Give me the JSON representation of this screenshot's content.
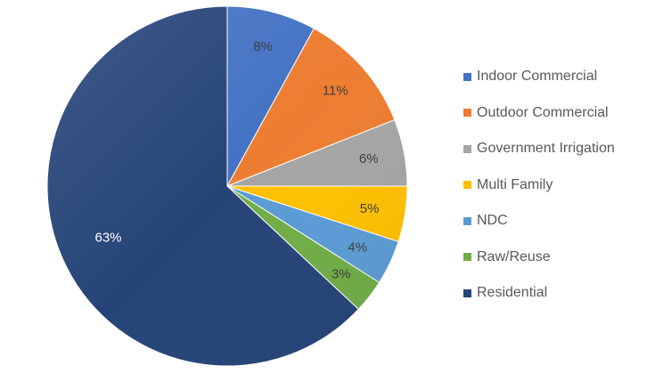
{
  "chart_data": {
    "type": "pie",
    "title": "",
    "start_angle_deg": 0,
    "direction": "clockwise",
    "legend_position": "right",
    "slices": [
      {
        "name": "Indoor Commercial",
        "value": 8,
        "label": "8%",
        "color": "#4472C4",
        "label_color": "#404040"
      },
      {
        "name": "Outdoor Commercial",
        "value": 11,
        "label": "11%",
        "color": "#ED7D31",
        "label_color": "#404040"
      },
      {
        "name": "Government Irrigation",
        "value": 6,
        "label": "6%",
        "color": "#A5A5A5",
        "label_color": "#404040"
      },
      {
        "name": "Multi Family",
        "value": 5,
        "label": "5%",
        "color": "#FFC000",
        "label_color": "#404040"
      },
      {
        "name": "NDC",
        "value": 4,
        "label": "4%",
        "color": "#5B9BD5",
        "label_color": "#404040"
      },
      {
        "name": "Raw/Reuse",
        "value": 3,
        "label": "3%",
        "color": "#70AD47",
        "label_color": "#404040"
      },
      {
        "name": "Residential",
        "value": 63,
        "label": "63%",
        "color": "#264478",
        "label_color": "#ffffff"
      }
    ]
  }
}
